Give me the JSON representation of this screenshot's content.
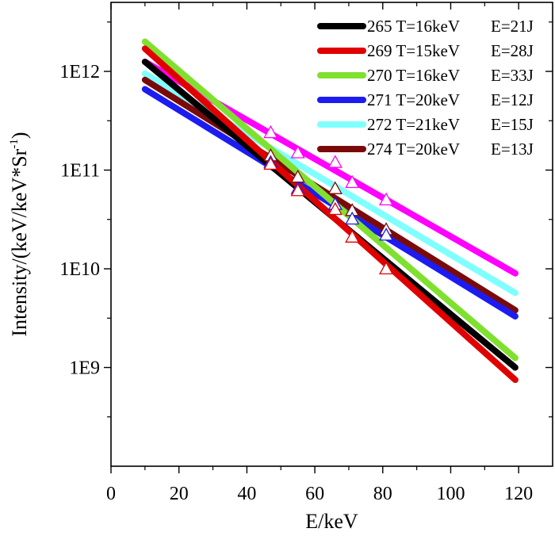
{
  "chart_data": {
    "type": "line",
    "title": "",
    "xlabel": "E/keV",
    "ylabel": {
      "main": "Intensity/(keV/keV*Sr",
      "superscript": "-1",
      "suffix": ")"
    },
    "xlim": [
      0,
      130
    ],
    "ylim": [
      100000000.0,
      5000000000000.0
    ],
    "yscale": "log",
    "x_ticks": [
      0,
      20,
      40,
      60,
      80,
      100,
      120
    ],
    "y_ticks": [
      1000000000.0,
      10000000000.0,
      100000000000.0,
      1000000000000.0
    ],
    "y_tick_labels": [
      "1E9",
      "1E10",
      "1E11",
      "1E12"
    ],
    "grid": false,
    "legend_position": "top-right",
    "legend": [
      {
        "shot": "265",
        "temperature": "T=16keV",
        "energy": "E=21J",
        "color": "#000000"
      },
      {
        "shot": "269",
        "temperature": "T=15keV",
        "energy": "E=28J",
        "color": "#e00000"
      },
      {
        "shot": "270",
        "temperature": "T=16keV",
        "energy": "E=33J",
        "color": "#80e030"
      },
      {
        "shot": "271",
        "temperature": "T=20keV",
        "energy": "E=12J",
        "color": "#1c1cf0"
      },
      {
        "shot": "272",
        "temperature": "T=21keV",
        "energy": "E=15J",
        "color": "#80ffff"
      },
      {
        "shot": "274",
        "temperature": "T=20keV",
        "energy": "E=13J",
        "color": "#7a0a0a"
      }
    ],
    "series": [
      {
        "color": "#ff00ff",
        "x": [
          10,
          119
        ],
        "y": [
          1250000000000.0,
          9000000000.0
        ]
      },
      {
        "color": "#80ffff",
        "x": [
          10,
          119
        ],
        "y": [
          950000000000.0,
          5700000000.0
        ]
      },
      {
        "color": "#7a0a0a",
        "x": [
          10,
          119
        ],
        "y": [
          820000000000.0,
          3800000000.0
        ]
      },
      {
        "color": "#1c1cf0",
        "x": [
          10,
          119
        ],
        "y": [
          660000000000.0,
          3300000000.0
        ]
      },
      {
        "color": "#80e030",
        "x": [
          10,
          119
        ],
        "y": [
          2000000000000.0,
          1250000000.0
        ]
      },
      {
        "color": "#000000",
        "x": [
          10,
          119
        ],
        "y": [
          1250000000000.0,
          1000000000.0
        ]
      },
      {
        "color": "#e00000",
        "x": [
          10,
          119
        ],
        "y": [
          1700000000000.0,
          750000000.0
        ]
      }
    ],
    "markers": [
      {
        "color": "#ff00ff",
        "points": [
          [
            47,
            240000000000.0
          ],
          [
            55,
            150000000000.0
          ],
          [
            66,
            120000000000.0
          ],
          [
            71,
            75000000000.0
          ],
          [
            81,
            50000000000.0
          ]
        ]
      },
      {
        "color": "#7a0a0a",
        "points": [
          [
            47,
            140000000000.0
          ],
          [
            55,
            85000000000.0
          ],
          [
            66,
            65000000000.0
          ],
          [
            71,
            39000000000.0
          ],
          [
            81,
            25000000000.0
          ]
        ]
      },
      {
        "color": "#1c1cf0",
        "points": [
          [
            47,
            120000000000.0
          ],
          [
            55,
            65000000000.0
          ],
          [
            66,
            45000000000.0
          ],
          [
            71,
            32000000000.0
          ],
          [
            81,
            22000000000.0
          ]
        ]
      },
      {
        "color": "#e00000",
        "points": [
          [
            47,
            115000000000.0
          ],
          [
            55,
            62000000000.0
          ],
          [
            66,
            40000000000.0
          ],
          [
            71,
            21000000000.0
          ],
          [
            81,
            10000000000.0
          ]
        ]
      }
    ]
  }
}
